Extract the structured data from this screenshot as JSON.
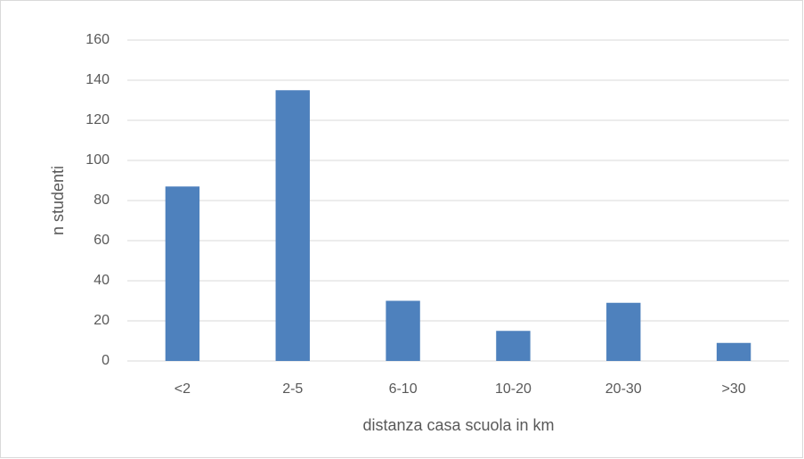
{
  "chart_data": {
    "type": "bar",
    "categories": [
      "<2",
      "2-5",
      "6-10",
      "10-20",
      "20-30",
      ">30"
    ],
    "values": [
      87,
      135,
      30,
      15,
      29,
      9
    ],
    "color": "#4e81bd",
    "x_label": "distanza casa scuola in km",
    "y_label": "n studenti",
    "ylim": [
      0,
      160
    ],
    "yticks": [
      0,
      20,
      40,
      60,
      80,
      100,
      120,
      140,
      160
    ],
    "grid": true
  }
}
